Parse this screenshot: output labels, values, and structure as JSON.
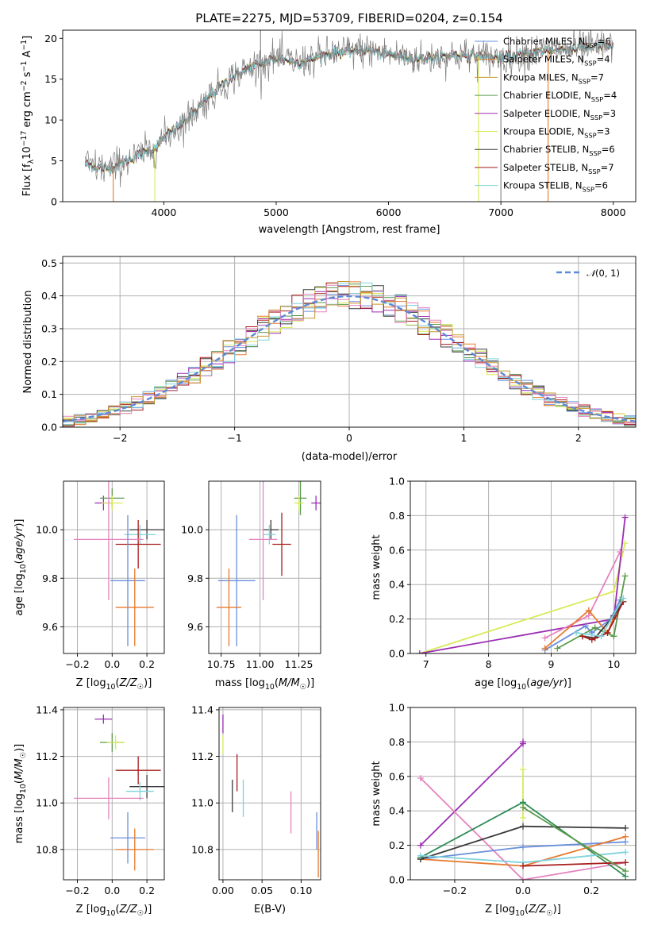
{
  "colors": {
    "Chabrier MILES": "#6a8fdb",
    "Salpeter MILES": "#e67a2e",
    "Kroupa MILES": "#c8962e",
    "Chabrier ELODIE": "#5a9a4a",
    "Salpeter ELODIE": "#9a2fb3",
    "Kroupa ELODIE": "#d9ea58",
    "Chabrier STELIB": "#3a3a3a",
    "Salpeter STELIB": "#a81c1c",
    "Kroupa STELIB": "#7fd3dc",
    "extra_pink": "#e583bf",
    "extra_green": "#2e8b57",
    "model": "#5b8ad6",
    "data": "#7f7f7f",
    "grid": "#b0b0b0"
  },
  "chart_data": [
    {
      "id": "spectrum",
      "type": "line",
      "title": "PLATE=2275, MJD=53709, FIBERID=0204, z=0.154",
      "xlabel": "wavelength [Angstrom, rest frame]",
      "ylabel": "Flux [f_λ10^-17 erg cm^-2 s^-1 A^-1]",
      "xlim": [
        3100,
        8200
      ],
      "ylim": [
        0,
        21
      ],
      "xticks": [
        4000,
        5000,
        6000,
        7000,
        8000
      ],
      "yticks": [
        0,
        5,
        10,
        15,
        20
      ],
      "grid": false,
      "legend": "upper right",
      "legend_entries": [
        {
          "label": "Chabrier MILES, N",
          "sub": "SSP",
          "suffix": "=6"
        },
        {
          "label": "Salpeter MILES, N",
          "sub": "SSP",
          "suffix": "=4"
        },
        {
          "label": "Kroupa MILES, N",
          "sub": "SSP",
          "suffix": "=7"
        },
        {
          "label": "Chabrier ELODIE, N",
          "sub": "SSP",
          "suffix": "=4"
        },
        {
          "label": "Salpeter ELODIE, N",
          "sub": "SSP",
          "suffix": "=3"
        },
        {
          "label": "Kroupa ELODIE, N",
          "sub": "SSP",
          "suffix": "=3"
        },
        {
          "label": "Chabrier STELIB, N",
          "sub": "SSP",
          "suffix": "=6"
        },
        {
          "label": "Salpeter STELIB, N",
          "sub": "SSP",
          "suffix": "=7"
        },
        {
          "label": "Kroupa STELIB, N",
          "sub": "SSP",
          "suffix": "=6"
        }
      ],
      "continuum": [
        [
          3300,
          4.6
        ],
        [
          3500,
          4.0
        ],
        [
          3700,
          5.2
        ],
        [
          3900,
          6.4
        ],
        [
          4000,
          7.8
        ],
        [
          4200,
          10.0
        ],
        [
          4400,
          12.8
        ],
        [
          4600,
          15.2
        ],
        [
          4800,
          16.6
        ],
        [
          5000,
          17.6
        ],
        [
          5200,
          17.0
        ],
        [
          5500,
          18.2
        ],
        [
          5800,
          18.6
        ],
        [
          6000,
          18.0
        ],
        [
          6300,
          17.5
        ],
        [
          6600,
          18.0
        ],
        [
          7000,
          17.6
        ],
        [
          7400,
          18.5
        ],
        [
          7800,
          18.9
        ],
        [
          8000,
          19.0
        ]
      ],
      "spikes": [
        [
          4861,
          21
        ],
        [
          7000,
          0
        ],
        [
          3550,
          0
        ],
        [
          3920,
          0
        ],
        [
          6800,
          0
        ],
        [
          7420,
          0
        ]
      ]
    },
    {
      "id": "residuals",
      "type": "histogram",
      "xlabel": "(data-model)/error",
      "ylabel": "Normed distribution",
      "xlim": [
        -2.5,
        2.5
      ],
      "ylim": [
        0,
        0.52
      ],
      "xticks": [
        -2,
        -1,
        0,
        1,
        2
      ],
      "yticks": [
        0.0,
        0.1,
        0.2,
        0.3,
        0.4,
        0.5
      ],
      "grid": true,
      "legend": "upper right",
      "legend_label": "N(0,1)",
      "bin_width": 0.1
    },
    {
      "id": "Z-age",
      "type": "errorbar",
      "xlabel": "Z [log10(Z/Z☉)]",
      "ylabel": "age  [log10(age/yr)]",
      "xlim": [
        -0.28,
        0.3
      ],
      "ylim": [
        9.49,
        10.2
      ],
      "xticks": [
        -0.2,
        0.0,
        0.2
      ],
      "yticks": [
        9.6,
        9.8,
        10.0
      ],
      "grid": true,
      "points": [
        {
          "model": "Salpeter ELODIE",
          "x": -0.05,
          "xerr": 0.05,
          "y": 10.11,
          "yerr": 0.03
        },
        {
          "model": "Chabrier ELODIE",
          "x": 0.0,
          "xerr": 0.07,
          "y": 10.13,
          "yerr": 0.04
        },
        {
          "model": "Kroupa ELODIE",
          "x": 0.0,
          "xerr": 0.06,
          "y": 10.11,
          "yerr": 0.03
        },
        {
          "model": "Chabrier STELIB",
          "x": 0.2,
          "xerr": 0.1,
          "y": 10.0,
          "yerr": 0.04
        },
        {
          "model": "Kroupa STELIB",
          "x": 0.16,
          "xerr": 0.09,
          "y": 9.98,
          "yerr": 0.04
        },
        {
          "model": "Salpeter STELIB",
          "x": 0.15,
          "xerr": 0.13,
          "y": 9.94,
          "yerr": 0.1
        },
        {
          "model": "extra_pink",
          "x": -0.02,
          "xerr": 0.2,
          "y": 9.96,
          "yerr": 0.25
        },
        {
          "model": "Chabrier MILES",
          "x": 0.09,
          "xerr": 0.1,
          "y": 9.79,
          "yerr": 0.27
        },
        {
          "model": "Salpeter MILES",
          "x": 0.13,
          "xerr": 0.11,
          "y": 9.68,
          "yerr": 0.16
        }
      ]
    },
    {
      "id": "mass-age",
      "type": "errorbar",
      "xlabel": "mass [log10(M/M☉)]",
      "ylabel": "",
      "xlim": [
        10.67,
        11.39
      ],
      "ylim": [
        9.49,
        10.2
      ],
      "xticks": [
        10.75,
        11.0,
        11.25
      ],
      "yticks": [
        9.6,
        9.8,
        10.0
      ],
      "grid": true,
      "points": [
        {
          "model": "Salpeter ELODIE",
          "x": 11.36,
          "xerr": 0.03,
          "y": 10.11,
          "yerr": 0.03
        },
        {
          "model": "Chabrier ELODIE",
          "x": 11.26,
          "xerr": 0.04,
          "y": 10.13,
          "yerr": 0.07
        },
        {
          "model": "Kroupa ELODIE",
          "x": 11.25,
          "xerr": 0.03,
          "y": 10.11,
          "yerr": 0.03
        },
        {
          "model": "Chabrier STELIB",
          "x": 11.07,
          "xerr": 0.05,
          "y": 10.0,
          "yerr": 0.04
        },
        {
          "model": "Kroupa STELIB",
          "x": 11.06,
          "xerr": 0.04,
          "y": 9.98,
          "yerr": 0.04
        },
        {
          "model": "Salpeter STELIB",
          "x": 11.14,
          "xerr": 0.06,
          "y": 9.94,
          "yerr": 0.13
        },
        {
          "model": "extra_pink",
          "x": 11.02,
          "xerr": 0.09,
          "y": 9.96,
          "yerr": 0.25
        },
        {
          "model": "Chabrier MILES",
          "x": 10.85,
          "xerr": 0.12,
          "y": 9.79,
          "yerr": 0.27
        },
        {
          "model": "Salpeter MILES",
          "x": 10.8,
          "xerr": 0.08,
          "y": 9.68,
          "yerr": 0.16
        }
      ]
    },
    {
      "id": "age-weight",
      "type": "line",
      "xlabel": "age  [log10(age/yr)]",
      "ylabel": "mass weight",
      "xlim": [
        6.75,
        10.35
      ],
      "ylim": [
        0,
        1.0
      ],
      "xticks": [
        7,
        8,
        9,
        10
      ],
      "yticks": [
        0.0,
        0.2,
        0.4,
        0.6,
        0.8,
        1.0
      ],
      "grid": true,
      "series": [
        {
          "model": "Kroupa ELODIE",
          "x": [
            6.9,
            10.0,
            10.18
          ],
          "y": [
            0.0,
            0.36,
            0.64
          ]
        },
        {
          "model": "Salpeter ELODIE",
          "x": [
            6.9,
            10.0,
            10.18
          ],
          "y": [
            0.0,
            0.2,
            0.79
          ]
        },
        {
          "model": "extra_pink",
          "x": [
            8.9,
            9.6,
            10.1
          ],
          "y": [
            0.09,
            0.22,
            0.59
          ]
        },
        {
          "model": "Chabrier MILES",
          "x": [
            8.9,
            9.55,
            9.65,
            9.95,
            10.1
          ],
          "y": [
            0.02,
            0.16,
            0.12,
            0.2,
            0.31
          ]
        },
        {
          "model": "Salpeter MILES",
          "x": [
            8.9,
            9.6,
            9.9,
            10.0
          ],
          "y": [
            0.03,
            0.25,
            0.12,
            0.21
          ]
        },
        {
          "model": "Chabrier ELODIE",
          "x": [
            9.1,
            9.7,
            10.0,
            10.18
          ],
          "y": [
            0.03,
            0.15,
            0.1,
            0.45
          ]
        },
        {
          "model": "Chabrier STELIB",
          "x": [
            9.5,
            9.7,
            10.0,
            10.15
          ],
          "y": [
            0.1,
            0.09,
            0.22,
            0.3
          ]
        },
        {
          "model": "Salpeter STELIB",
          "x": [
            9.5,
            9.65,
            9.9,
            10.15
          ],
          "y": [
            0.1,
            0.08,
            0.12,
            0.3
          ]
        },
        {
          "model": "Kroupa STELIB",
          "x": [
            9.4,
            9.8,
            10.15
          ],
          "y": [
            0.12,
            0.1,
            0.32
          ]
        }
      ]
    },
    {
      "id": "Z-mass",
      "type": "errorbar",
      "xlabel": "Z [log10(Z/Z☉)]",
      "ylabel": "mass [log10(M/M☉)]",
      "xlim": [
        -0.28,
        0.3
      ],
      "ylim": [
        10.67,
        11.41
      ],
      "xticks": [
        -0.2,
        0.0,
        0.2
      ],
      "yticks": [
        10.8,
        11.0,
        11.2,
        11.4
      ],
      "grid": true,
      "points": [
        {
          "model": "Salpeter ELODIE",
          "x": -0.05,
          "xerr": 0.05,
          "y": 11.36,
          "yerr": 0.02
        },
        {
          "model": "Chabrier ELODIE",
          "x": 0.0,
          "xerr": 0.07,
          "y": 11.26,
          "yerr": 0.04
        },
        {
          "model": "Kroupa ELODIE",
          "x": 0.02,
          "xerr": 0.05,
          "y": 11.26,
          "yerr": 0.03
        },
        {
          "model": "Salpeter STELIB",
          "x": 0.15,
          "xerr": 0.13,
          "y": 11.14,
          "yerr": 0.06
        },
        {
          "model": "Chabrier STELIB",
          "x": 0.2,
          "xerr": 0.1,
          "y": 11.07,
          "yerr": 0.05
        },
        {
          "model": "Kroupa STELIB",
          "x": 0.16,
          "xerr": 0.08,
          "y": 11.05,
          "yerr": 0.04
        },
        {
          "model": "extra_pink",
          "x": -0.02,
          "xerr": 0.2,
          "y": 11.02,
          "yerr": 0.09
        },
        {
          "model": "Chabrier MILES",
          "x": 0.09,
          "xerr": 0.1,
          "y": 10.85,
          "yerr": 0.11
        },
        {
          "model": "Salpeter MILES",
          "x": 0.13,
          "xerr": 0.11,
          "y": 10.8,
          "yerr": 0.09
        }
      ]
    },
    {
      "id": "EBV-mass",
      "type": "errorbar",
      "xlabel": "E(B-V)",
      "ylabel": "",
      "xlim": [
        -0.005,
        0.125
      ],
      "ylim": [
        10.67,
        11.41
      ],
      "xticks": [
        0.0,
        0.05,
        0.1
      ],
      "xticklabels": [
        "0.00",
        "0.05",
        "0.10"
      ],
      "yticks": [
        10.8,
        11.0,
        11.2,
        11.4
      ],
      "grid": true,
      "points": [
        {
          "model": "Salpeter ELODIE",
          "x": 0.0,
          "xerr": 0.0,
          "y": 11.34,
          "yerr": 0.04
        },
        {
          "model": "Kroupa ELODIE",
          "x": 0.0,
          "xerr": 0.0,
          "y": 11.25,
          "yerr": 0.04
        },
        {
          "model": "Salpeter STELIB",
          "x": 0.018,
          "xerr": 0.0,
          "y": 11.13,
          "yerr": 0.08
        },
        {
          "model": "Chabrier STELIB",
          "x": 0.012,
          "xerr": 0.0,
          "y": 11.03,
          "yerr": 0.07
        },
        {
          "model": "Kroupa STELIB",
          "x": 0.026,
          "xerr": 0.0,
          "y": 11.02,
          "yerr": 0.08
        },
        {
          "model": "extra_pink",
          "x": 0.087,
          "xerr": 0.0,
          "y": 10.96,
          "yerr": 0.09
        },
        {
          "model": "Chabrier MILES",
          "x": 0.12,
          "xerr": 0.0,
          "y": 10.88,
          "yerr": 0.08
        },
        {
          "model": "Salpeter MILES",
          "x": 0.122,
          "xerr": 0.0,
          "y": 10.78,
          "yerr": 0.1
        }
      ]
    },
    {
      "id": "Z-weight",
      "type": "line",
      "xlabel": "Z [log10(Z/Z☉)]",
      "ylabel": "mass weight",
      "xlim": [
        -0.33,
        0.33
      ],
      "ylim": [
        0,
        1.0
      ],
      "xticks": [
        -0.2,
        0.0,
        0.2
      ],
      "yticks": [
        0.0,
        0.2,
        0.4,
        0.6,
        0.8,
        1.0
      ],
      "grid": true,
      "series": [
        {
          "model": "Salpeter ELODIE",
          "x": [
            -0.3,
            0.0,
            0.0
          ],
          "y": [
            0.2,
            0.79,
            0.8
          ]
        },
        {
          "model": "extra_pink",
          "x": [
            -0.3,
            0.0,
            0.3
          ],
          "y": [
            0.59,
            0.0,
            0.1
          ]
        },
        {
          "model": "Kroupa ELODIE",
          "x": [
            0.0,
            0.0
          ],
          "y": [
            0.36,
            0.64
          ]
        },
        {
          "model": "extra_green",
          "x": [
            -0.3,
            0.0,
            0.3
          ],
          "y": [
            0.13,
            0.45,
            0.02
          ]
        },
        {
          "model": "Chabrier MILES",
          "x": [
            -0.3,
            0.0,
            0.3
          ],
          "y": [
            0.12,
            0.19,
            0.22
          ]
        },
        {
          "model": "Salpeter MILES",
          "x": [
            -0.3,
            0.0,
            0.3
          ],
          "y": [
            0.12,
            0.08,
            0.25
          ]
        },
        {
          "model": "Chabrier STELIB",
          "x": [
            -0.3,
            0.0,
            0.3
          ],
          "y": [
            0.12,
            0.31,
            0.3
          ]
        },
        {
          "model": "Kroupa STELIB",
          "x": [
            -0.3,
            0.0,
            0.3
          ],
          "y": [
            0.14,
            0.1,
            0.16
          ]
        },
        {
          "model": "Salpeter STELIB",
          "x": [
            0.0,
            0.3
          ],
          "y": [
            0.08,
            0.1
          ]
        },
        {
          "model": "Chabrier ELODIE",
          "x": [
            0.0,
            0.3
          ],
          "y": [
            0.42,
            0.05
          ]
        }
      ]
    }
  ]
}
